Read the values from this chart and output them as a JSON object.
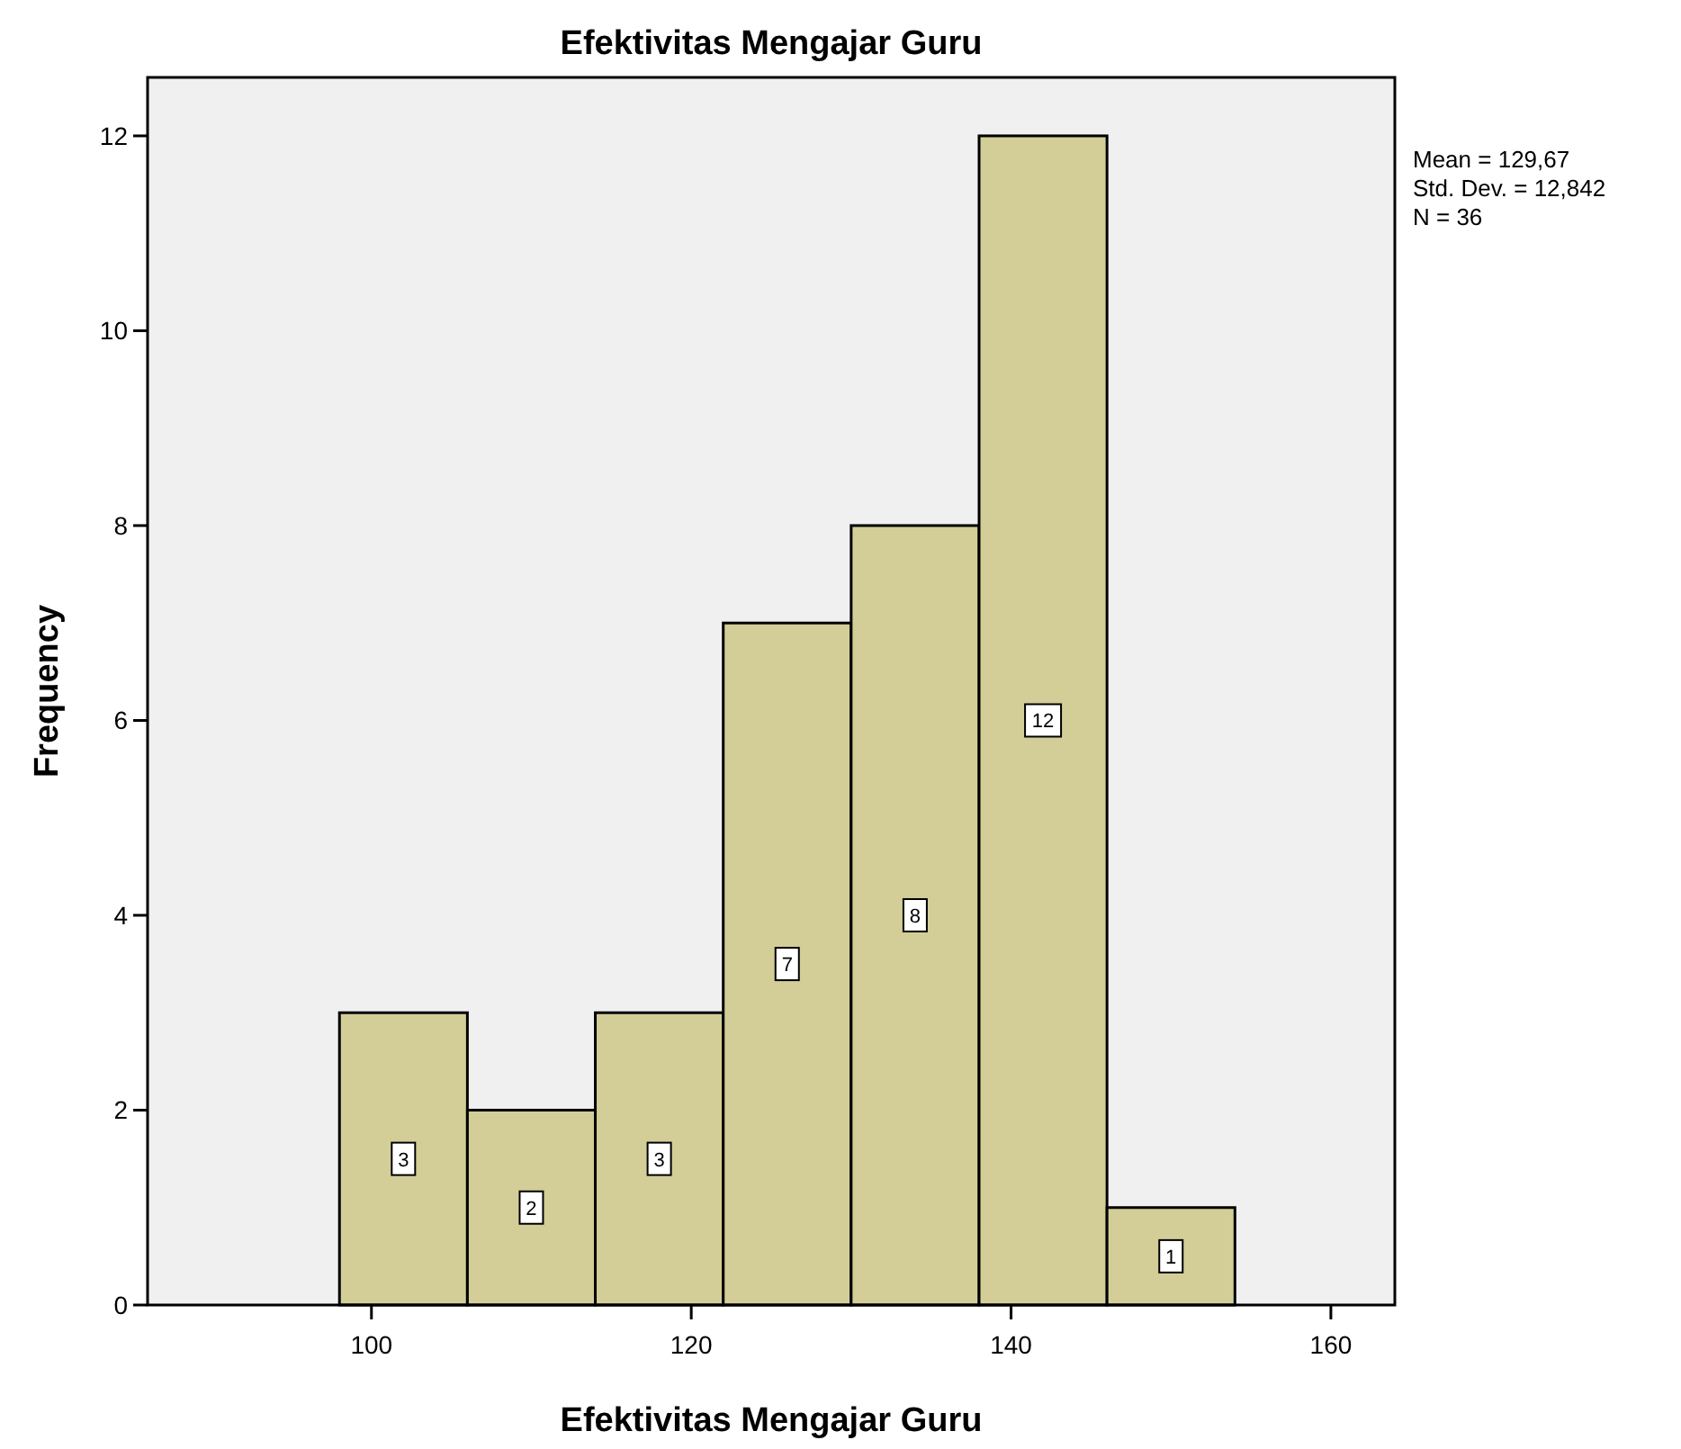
{
  "chart_data": {
    "type": "histogram",
    "title": "Efektivitas Mengajar Guru",
    "xlabel": "Efektivitas Mengajar Guru",
    "ylabel": "Frequency",
    "bins": [
      98,
      106,
      114,
      122,
      130,
      138,
      146,
      154
    ],
    "values": [
      3,
      2,
      3,
      7,
      8,
      12,
      1
    ],
    "color": "#d3ce97",
    "xlim": [
      86,
      164
    ],
    "xticks": [
      100,
      120,
      140,
      160
    ],
    "ylim": [
      0,
      12.6
    ],
    "yticks": [
      0,
      2,
      4,
      6,
      8,
      10,
      12
    ],
    "data_labels": true,
    "grid": false,
    "annotations": [
      "Mean = 129,67",
      "Std. Dev. = 12,842",
      "N = 36"
    ]
  }
}
